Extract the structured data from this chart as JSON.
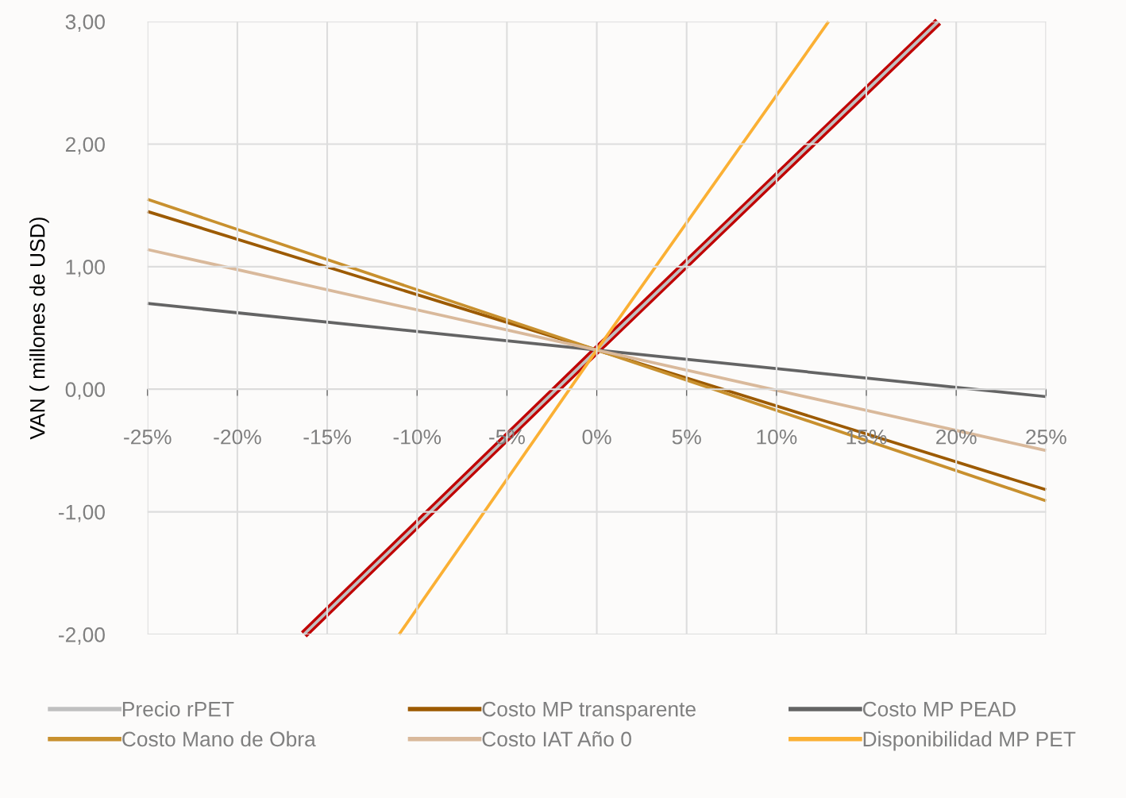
{
  "chart_data": {
    "type": "line",
    "ylabel": "VAN ( millones de USD)",
    "x": [
      -25,
      0,
      25
    ],
    "xlim": [
      -25,
      25
    ],
    "ylim": [
      -2,
      3
    ],
    "xticks": [
      {
        "value": -25,
        "label": "-25%"
      },
      {
        "value": -20,
        "label": "-20%"
      },
      {
        "value": -15,
        "label": "-15%"
      },
      {
        "value": -10,
        "label": "-10%"
      },
      {
        "value": -5,
        "label": "-5%"
      },
      {
        "value": 0,
        "label": "0%"
      },
      {
        "value": 5,
        "label": "5%"
      },
      {
        "value": 10,
        "label": "10%"
      },
      {
        "value": 15,
        "label": "15%"
      },
      {
        "value": 20,
        "label": "20%"
      },
      {
        "value": 25,
        "label": "25%"
      }
    ],
    "yticks": [
      {
        "value": -2,
        "label": "-2,00"
      },
      {
        "value": -1,
        "label": "-1,00"
      },
      {
        "value": 0,
        "label": "0,00"
      },
      {
        "value": 1,
        "label": "1,00"
      },
      {
        "value": 2,
        "label": "2,00"
      },
      {
        "value": 3,
        "label": "3,00"
      }
    ],
    "grid": true,
    "legend": "bottom",
    "series": [
      {
        "name": "Precio rPET",
        "color": "#c0c0c0",
        "x": [
          -16.3,
          0,
          19
        ],
        "values": [
          -2,
          0.32,
          3
        ]
      },
      {
        "name": "Costo MP transparente",
        "color": "#9c5a00",
        "values": [
          1.45,
          0.32,
          -0.82
        ]
      },
      {
        "name": "Costo MP PEAD",
        "color": "#646464",
        "values": [
          0.7,
          0.32,
          -0.06
        ]
      },
      {
        "name": "Costo Mano de Obra",
        "color": "#c8902e",
        "values": [
          1.55,
          0.32,
          -0.91
        ]
      },
      {
        "name": "Costo IAT Año 0",
        "color": "#d9b99b",
        "values": [
          1.14,
          0.32,
          -0.5
        ]
      },
      {
        "name": "Disponibilidad MP PET",
        "color": "#fbb034",
        "x": [
          -11,
          0,
          12.9
        ],
        "values": [
          -2,
          0.32,
          3
        ]
      },
      {
        "color": "#c00000",
        "x": [
          -16.3,
          0,
          19
        ],
        "values": [
          -2,
          0.32,
          3
        ]
      }
    ]
  }
}
